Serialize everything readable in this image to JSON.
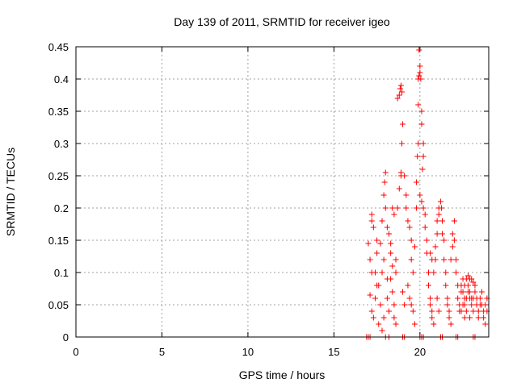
{
  "chart_data": {
    "type": "scatter",
    "title": "Day 139 of 2011, SRMTID for receiver igeo",
    "xlabel": "GPS time / hours",
    "ylabel": "SRMTID / TECUs",
    "xlim": [
      0,
      24
    ],
    "ylim": [
      0,
      0.45
    ],
    "xticks": [
      0,
      5,
      10,
      15,
      20
    ],
    "xtick_labels": [
      "0",
      "5",
      "10",
      "15",
      "20"
    ],
    "yticks": [
      0,
      0.05,
      0.1,
      0.15,
      0.2,
      0.25,
      0.3,
      0.35,
      0.4,
      0.45
    ],
    "ytick_labels": [
      "0",
      "0.05",
      "0.1",
      "0.15",
      "0.2",
      "0.25",
      "0.3",
      "0.35",
      "0.4",
      "0.45"
    ],
    "grid": true,
    "marker": "+",
    "color": "#ff0000",
    "series": [
      {
        "name": "SRMTID",
        "points": [
          [
            16.9,
            0.0
          ],
          [
            17.0,
            0.0
          ],
          [
            17.1,
            0.0
          ],
          [
            18.0,
            0.0
          ],
          [
            18.2,
            0.0
          ],
          [
            19.0,
            0.0
          ],
          [
            19.1,
            0.0
          ],
          [
            20.0,
            0.0
          ],
          [
            20.1,
            0.0
          ],
          [
            20.2,
            0.0
          ],
          [
            21.2,
            0.0
          ],
          [
            21.3,
            0.0
          ],
          [
            22.1,
            0.0
          ],
          [
            22.2,
            0.0
          ],
          [
            23.1,
            0.0
          ],
          [
            23.2,
            0.0
          ],
          [
            17.0,
            0.145
          ],
          [
            17.1,
            0.12
          ],
          [
            17.2,
            0.1
          ],
          [
            17.1,
            0.065
          ],
          [
            17.2,
            0.04
          ],
          [
            17.3,
            0.03
          ],
          [
            17.4,
            0.06
          ],
          [
            17.3,
            0.17
          ],
          [
            17.2,
            0.18
          ],
          [
            17.2,
            0.19
          ],
          [
            17.5,
            0.15
          ],
          [
            17.5,
            0.13
          ],
          [
            17.6,
            0.08
          ],
          [
            17.7,
            0.05
          ],
          [
            17.6,
            0.02
          ],
          [
            17.8,
            0.01
          ],
          [
            17.9,
            0.03
          ],
          [
            17.8,
            0.1
          ],
          [
            17.9,
            0.12
          ],
          [
            17.7,
            0.145
          ],
          [
            17.8,
            0.18
          ],
          [
            17.9,
            0.22
          ],
          [
            17.95,
            0.24
          ],
          [
            18.0,
            0.255
          ],
          [
            18.0,
            0.2
          ],
          [
            18.1,
            0.17
          ],
          [
            18.2,
            0.16
          ],
          [
            18.3,
            0.145
          ],
          [
            18.3,
            0.13
          ],
          [
            18.4,
            0.11
          ],
          [
            18.3,
            0.09
          ],
          [
            18.4,
            0.07
          ],
          [
            18.5,
            0.05
          ],
          [
            18.5,
            0.03
          ],
          [
            18.6,
            0.02
          ],
          [
            18.1,
            0.06
          ],
          [
            18.2,
            0.04
          ],
          [
            18.1,
            0.09
          ],
          [
            18.6,
            0.1
          ],
          [
            18.6,
            0.12
          ],
          [
            18.7,
            0.2
          ],
          [
            18.8,
            0.23
          ],
          [
            18.9,
            0.25
          ],
          [
            18.9,
            0.255
          ],
          [
            18.95,
            0.3
          ],
          [
            19.0,
            0.33
          ],
          [
            18.8,
            0.375
          ],
          [
            18.85,
            0.385
          ],
          [
            18.9,
            0.39
          ],
          [
            18.95,
            0.38
          ],
          [
            18.7,
            0.37
          ],
          [
            19.1,
            0.25
          ],
          [
            19.2,
            0.22
          ],
          [
            19.2,
            0.2
          ],
          [
            19.3,
            0.18
          ],
          [
            19.4,
            0.17
          ],
          [
            19.5,
            0.15
          ],
          [
            19.5,
            0.12
          ],
          [
            19.6,
            0.1
          ],
          [
            19.3,
            0.08
          ],
          [
            19.4,
            0.06
          ],
          [
            19.5,
            0.05
          ],
          [
            19.6,
            0.04
          ],
          [
            19.7,
            0.02
          ],
          [
            19.7,
            0.14
          ],
          [
            19.8,
            0.2
          ],
          [
            19.8,
            0.24
          ],
          [
            19.85,
            0.28
          ],
          [
            19.9,
            0.3
          ],
          [
            19.9,
            0.36
          ],
          [
            19.9,
            0.4
          ],
          [
            19.95,
            0.405
          ],
          [
            20.0,
            0.41
          ],
          [
            20.0,
            0.42
          ],
          [
            19.95,
            0.445
          ],
          [
            20.05,
            0.4
          ],
          [
            20.1,
            0.35
          ],
          [
            20.1,
            0.33
          ],
          [
            20.2,
            0.3
          ],
          [
            20.2,
            0.28
          ],
          [
            20.15,
            0.26
          ],
          [
            20.0,
            0.22
          ],
          [
            20.1,
            0.21
          ],
          [
            20.2,
            0.2
          ],
          [
            20.3,
            0.19
          ],
          [
            20.3,
            0.17
          ],
          [
            20.4,
            0.15
          ],
          [
            20.4,
            0.13
          ],
          [
            20.5,
            0.1
          ],
          [
            20.5,
            0.08
          ],
          [
            20.6,
            0.06
          ],
          [
            20.6,
            0.05
          ],
          [
            20.7,
            0.04
          ],
          [
            20.7,
            0.03
          ],
          [
            20.8,
            0.02
          ],
          [
            20.8,
            0.1
          ],
          [
            20.9,
            0.12
          ],
          [
            20.9,
            0.14
          ],
          [
            21.0,
            0.16
          ],
          [
            21.0,
            0.18
          ],
          [
            21.1,
            0.19
          ],
          [
            21.1,
            0.2
          ],
          [
            21.2,
            0.21
          ],
          [
            21.25,
            0.2
          ],
          [
            21.3,
            0.18
          ],
          [
            21.3,
            0.16
          ],
          [
            21.4,
            0.15
          ],
          [
            21.4,
            0.12
          ],
          [
            21.5,
            0.1
          ],
          [
            21.5,
            0.08
          ],
          [
            21.6,
            0.06
          ],
          [
            21.6,
            0.05
          ],
          [
            21.7,
            0.04
          ],
          [
            21.7,
            0.03
          ],
          [
            21.8,
            0.02
          ],
          [
            21.8,
            0.12
          ],
          [
            21.9,
            0.14
          ],
          [
            21.9,
            0.16
          ],
          [
            22.0,
            0.18
          ],
          [
            22.0,
            0.15
          ],
          [
            22.1,
            0.12
          ],
          [
            22.1,
            0.1
          ],
          [
            22.2,
            0.08
          ],
          [
            22.2,
            0.06
          ],
          [
            22.3,
            0.05
          ],
          [
            22.3,
            0.04
          ],
          [
            22.4,
            0.07
          ],
          [
            22.4,
            0.08
          ],
          [
            22.5,
            0.09
          ],
          [
            22.5,
            0.07
          ],
          [
            22.6,
            0.06
          ],
          [
            22.6,
            0.05
          ],
          [
            22.7,
            0.04
          ],
          [
            22.7,
            0.06
          ],
          [
            22.8,
            0.08
          ],
          [
            22.8,
            0.095
          ],
          [
            22.9,
            0.09
          ],
          [
            22.9,
            0.07
          ],
          [
            23.0,
            0.06
          ],
          [
            23.0,
            0.05
          ],
          [
            23.1,
            0.04
          ],
          [
            23.1,
            0.06
          ],
          [
            23.2,
            0.08
          ],
          [
            23.2,
            0.07
          ],
          [
            23.3,
            0.06
          ],
          [
            23.3,
            0.05
          ],
          [
            23.4,
            0.04
          ],
          [
            23.4,
            0.03
          ],
          [
            23.5,
            0.05
          ],
          [
            23.5,
            0.06
          ],
          [
            23.6,
            0.07
          ],
          [
            23.6,
            0.05
          ],
          [
            23.7,
            0.04
          ],
          [
            23.7,
            0.03
          ],
          [
            23.8,
            0.02
          ],
          [
            23.8,
            0.05
          ],
          [
            23.9,
            0.04
          ],
          [
            23.9,
            0.06
          ],
          [
            22.6,
            0.08
          ],
          [
            22.7,
            0.09
          ],
          [
            22.8,
            0.07
          ],
          [
            22.9,
            0.06
          ],
          [
            22.5,
            0.05
          ],
          [
            22.4,
            0.04
          ],
          [
            23.0,
            0.09
          ],
          [
            23.1,
            0.085
          ],
          [
            22.6,
            0.03
          ],
          [
            22.9,
            0.03
          ],
          [
            21.0,
            0.06
          ],
          [
            21.1,
            0.04
          ],
          [
            20.6,
            0.13
          ],
          [
            20.7,
            0.12
          ],
          [
            19.0,
            0.07
          ],
          [
            19.1,
            0.05
          ],
          [
            18.4,
            0.2
          ],
          [
            18.5,
            0.19
          ],
          [
            17.4,
            0.1
          ],
          [
            17.5,
            0.08
          ]
        ]
      }
    ]
  }
}
